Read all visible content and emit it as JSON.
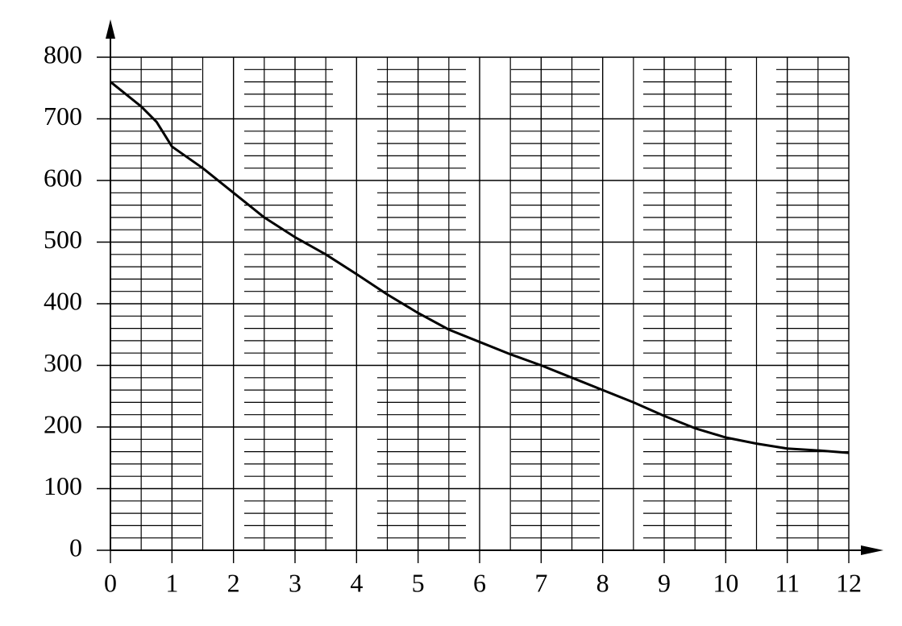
{
  "chart_data": {
    "type": "line",
    "x": [
      0,
      0.5,
      0.75,
      1,
      1.5,
      2,
      2.5,
      3,
      3.5,
      4,
      4.5,
      5,
      5.5,
      6,
      6.5,
      7,
      7.5,
      8,
      8.5,
      9,
      9.5,
      10,
      10.5,
      11,
      11.5,
      12
    ],
    "values": [
      760,
      720,
      695,
      655,
      620,
      580,
      540,
      508,
      480,
      448,
      415,
      385,
      358,
      338,
      318,
      300,
      280,
      260,
      240,
      218,
      198,
      183,
      173,
      165,
      162,
      158
    ],
    "color": "#000000",
    "xlim": [
      0,
      12
    ],
    "xticks": [
      0,
      1,
      2,
      3,
      4,
      5,
      6,
      7,
      8,
      9,
      10,
      11,
      12
    ],
    "ylim": [
      0,
      800
    ],
    "yticks": [
      0,
      100,
      200,
      300,
      400,
      500,
      600,
      700,
      800
    ],
    "grid": true
  }
}
